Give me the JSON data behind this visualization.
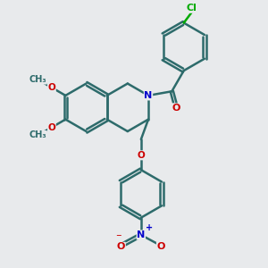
{
  "bg_color": "#e8eaec",
  "bond_color": "#2d6b6b",
  "atom_colors": {
    "N": "#0000cc",
    "O": "#cc0000",
    "Cl": "#00aa00",
    "C": "#2d6b6b"
  },
  "bond_width": 1.8,
  "dbo": 0.035,
  "scale": 1.0
}
